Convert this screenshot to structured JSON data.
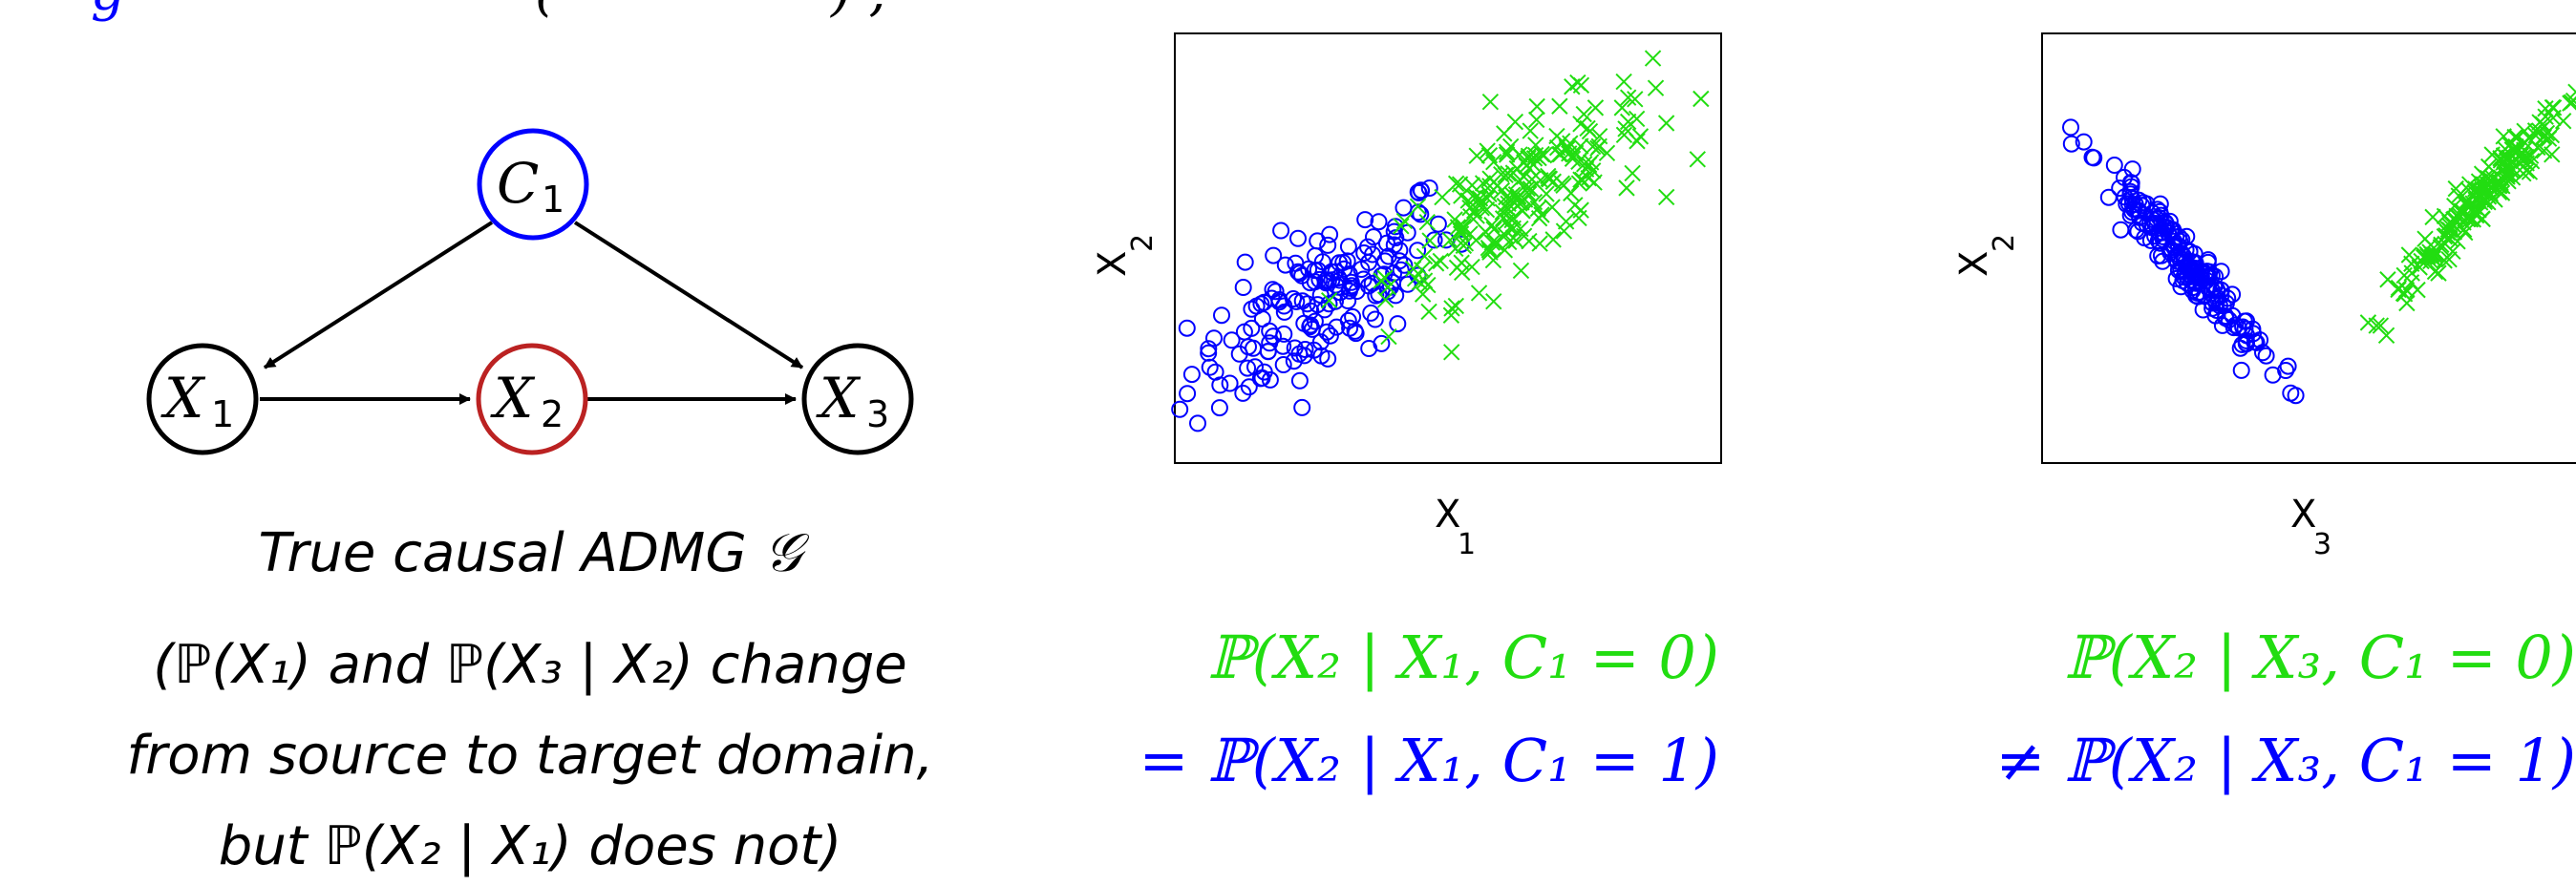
{
  "header_fragment": {
    "left": "g",
    "middle": "(",
    "right": ") , "
  },
  "colors": {
    "blue": "#0000ff",
    "green": "#22dd11",
    "red": "#bb2222",
    "black": "#000000"
  },
  "graph": {
    "nodes": [
      {
        "id": "C1",
        "base": "C",
        "sub": "1",
        "color": "#0000ff"
      },
      {
        "id": "X1",
        "base": "X",
        "sub": "1",
        "color": "#000000"
      },
      {
        "id": "X2",
        "base": "X",
        "sub": "2",
        "color": "#bb2222"
      },
      {
        "id": "X3",
        "base": "X",
        "sub": "3",
        "color": "#000000"
      }
    ],
    "edges": [
      {
        "from": "C1",
        "to": "X1"
      },
      {
        "from": "C1",
        "to": "X3"
      },
      {
        "from": "X1",
        "to": "X2"
      },
      {
        "from": "X2",
        "to": "X3"
      }
    ]
  },
  "caption": {
    "line1": "True causal ADMG 𝒢",
    "line2": "(ℙ(X₁) and ℙ(X₃ | X₂) change",
    "line3": "from source to target domain,",
    "line4": "but ℙ(X₂ | X₁) does not)"
  },
  "plot1": {
    "xlabel": "X",
    "xlabel_sub": "1",
    "ylabel": "X",
    "ylabel_sub": "2",
    "formula_line1": "ℙ(X₂ | X₁, C₁ = 0)",
    "formula_line2": "= ℙ(X₂ | X₁, C₁ = 1)"
  },
  "plot2": {
    "xlabel": "X",
    "xlabel_sub": "3",
    "ylabel": "X",
    "ylabel_sub": "2",
    "formula_line1": "ℙ(X₂ | X₃, C₁ = 0)",
    "formula_line2": "≠ ℙ(X₂ | X₃, C₁ = 1)"
  },
  "chart_data": [
    {
      "type": "scatter",
      "series": [
        {
          "marker": "circle",
          "color": "#0000ff",
          "center": [
            0.27,
            0.38
          ],
          "spread": [
            0.12,
            0.12
          ],
          "corr": 0.7,
          "n": 180
        },
        {
          "marker": "x",
          "color": "#22dd11",
          "center": [
            0.63,
            0.62
          ],
          "spread": [
            0.12,
            0.12
          ],
          "corr": 0.75,
          "n": 220
        }
      ],
      "xlabel": "X1",
      "ylabel": "X2",
      "xlim": [
        0,
        1
      ],
      "ylim": [
        0,
        1
      ],
      "grid": false
    },
    {
      "type": "scatter",
      "series": [
        {
          "marker": "circle",
          "color": "#0000ff",
          "line": [
            [
              0.07,
              0.77
            ],
            [
              0.45,
              0.17
            ]
          ],
          "noise": 0.018,
          "n": 200
        },
        {
          "marker": "x",
          "color": "#22dd11",
          "line": [
            [
              0.6,
              0.32
            ],
            [
              0.98,
              0.88
            ]
          ],
          "noise": 0.018,
          "n": 200
        }
      ],
      "xlabel": "X3",
      "ylabel": "X2",
      "xlim": [
        0,
        1
      ],
      "ylim": [
        0,
        1
      ],
      "grid": false
    }
  ]
}
